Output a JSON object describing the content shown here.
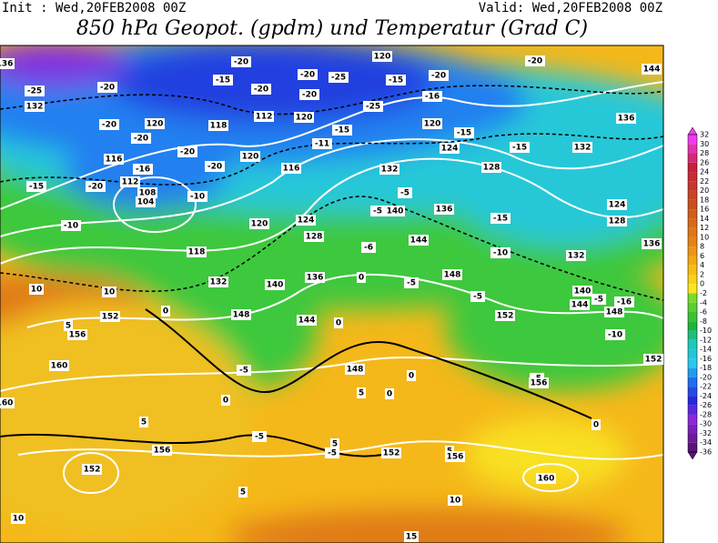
{
  "header": {
    "init": "Init : Wed,20FEB2008 00Z",
    "valid": "Valid: Wed,20FEB2008 00Z",
    "title": "850 hPa Geopot. (gpdm) und Temperatur (Grad C)"
  },
  "colorbar": {
    "levels": [
      32,
      30,
      28,
      26,
      24,
      22,
      20,
      18,
      16,
      14,
      12,
      10,
      8,
      6,
      4,
      2,
      0,
      -2,
      -4,
      -6,
      -8,
      -10,
      -12,
      -14,
      -16,
      -18,
      -20,
      -22,
      -24,
      -26,
      -28,
      -30,
      -32,
      -34,
      -36
    ]
  },
  "temperature_labels": [
    -25,
    -20,
    -20,
    -20,
    -15,
    -20,
    -10,
    -16,
    -20,
    -20,
    -10,
    -20,
    -15,
    -20,
    -20,
    -20,
    -25,
    -25,
    -16,
    -15,
    -20,
    -15,
    -15,
    -20,
    -11,
    -15,
    -5,
    -5,
    -15,
    -10,
    -6,
    -5,
    -5,
    -10,
    -16,
    -5,
    -5,
    0,
    -5,
    -5,
    -5,
    10,
    10,
    5,
    5,
    5,
    10,
    10,
    15,
    0,
    0,
    0,
    0,
    0,
    0,
    5,
    5,
    5
  ],
  "geopotential_labels": [
    132,
    120,
    116,
    112,
    108,
    104,
    118,
    120,
    132,
    140,
    148,
    144,
    136,
    128,
    124,
    116,
    120,
    118,
    112,
    120,
    120,
    120,
    124,
    132,
    128,
    140,
    136,
    144,
    148,
    132,
    136,
    144,
    124,
    128,
    132,
    136,
    140,
    144,
    148,
    152,
    152,
    156,
    160,
    156,
    152,
    160,
    156,
    152,
    152,
    156,
    148,
    160,
    136
  ]
}
